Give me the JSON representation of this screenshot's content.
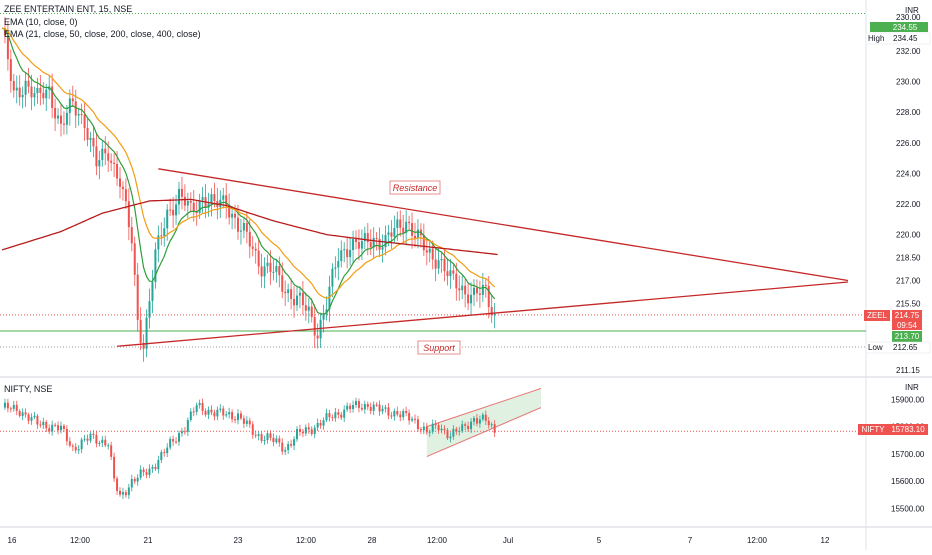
{
  "colors": {
    "up": "#26a69a",
    "down": "#ef5350",
    "ema10": "#2e9e3a",
    "ema_multi_21": "#f39c12",
    "ema_multi_400": "#b71c1c",
    "trendline": "#c62828",
    "green_level": "#4caf50",
    "channel_fill": "#c8e6c9",
    "channel_line": "#e57373",
    "label_text": "#c62828"
  },
  "legend": {
    "title": "ZEE ENTERTAIN ENT, 15, NSE",
    "ema1": "EMA (10, close, 0)",
    "ema2": "EMA (21, close, 50, close, 200, close, 400, close)"
  },
  "annotations": {
    "resistance": "Resistance",
    "support": "Support"
  },
  "price_scale": {
    "currency": "INR",
    "high_label": "High",
    "high_value": "234.45",
    "low_label": "Low",
    "low_value": "212.65",
    "top_badge": "234.55",
    "symbol_badge": "ZEEL",
    "last_price": "214.75",
    "countdown": "09:54",
    "green_badge": "213.70",
    "ticks": [
      "230.00",
      "232.00",
      "230.00",
      "228.00",
      "226.00",
      "224.00",
      "222.00",
      "220.00",
      "218.50",
      "217.00",
      "215.50",
      "211.15"
    ]
  },
  "nifty": {
    "title": "NIFTY, NSE",
    "currency": "INR",
    "symbol_badge": "NIFTY",
    "last_price": "15783.10",
    "ticks": [
      "15900.00",
      "15800.00",
      "15700.00",
      "15600.00",
      "15500.00"
    ]
  },
  "time_axis": [
    "16",
    "12:00",
    "21",
    "23",
    "12:00",
    "28",
    "12:00",
    "Jul",
    "5",
    "7",
    "12:00",
    "12"
  ],
  "chart_data": [
    {
      "type": "line",
      "title": "ZEE ENTERTAIN ENT, 15, NSE",
      "note_series": "candlesticks with EMA overlays and drawn trendlines",
      "ylim": [
        211.15,
        234.55
      ],
      "x": [
        "16",
        "12:00",
        "21",
        "23",
        "12:00",
        "28",
        "12:00",
        "Jul"
      ],
      "series": [
        {
          "name": "ZEE ENTERTAIN ENT, 15, NSE",
          "values": [
            233.5,
            229.0,
            223.0,
            221.0,
            215.2,
            220.5,
            218.0,
            214.75
          ]
        },
        {
          "name": "EMA (10, close, 0)",
          "values": [
            231.0,
            227.5,
            222.0,
            221.0,
            216.0,
            219.8,
            218.0,
            215.5
          ]
        },
        {
          "name": "EMA (21, close, 50, close, 200, close, 400, close)",
          "values": [
            219.0,
            221.5,
            222.5,
            221.7,
            220.0,
            219.5,
            219.2,
            218.7
          ]
        }
      ],
      "levels": {
        "high": 234.45,
        "low": 212.65,
        "last": 214.75,
        "green_line": 213.7
      },
      "annotations": [
        "Resistance",
        "Support"
      ]
    },
    {
      "type": "line",
      "title": "NIFTY, NSE",
      "ylim": [
        15450,
        15960
      ],
      "x": [
        "16",
        "12:00",
        "21",
        "23",
        "12:00",
        "28",
        "12:00",
        "Jul"
      ],
      "series": [
        {
          "name": "NIFTY, NSE",
          "values": [
            15880,
            15810,
            15560,
            15860,
            15760,
            15890,
            15790,
            15783.1
          ]
        }
      ]
    }
  ]
}
